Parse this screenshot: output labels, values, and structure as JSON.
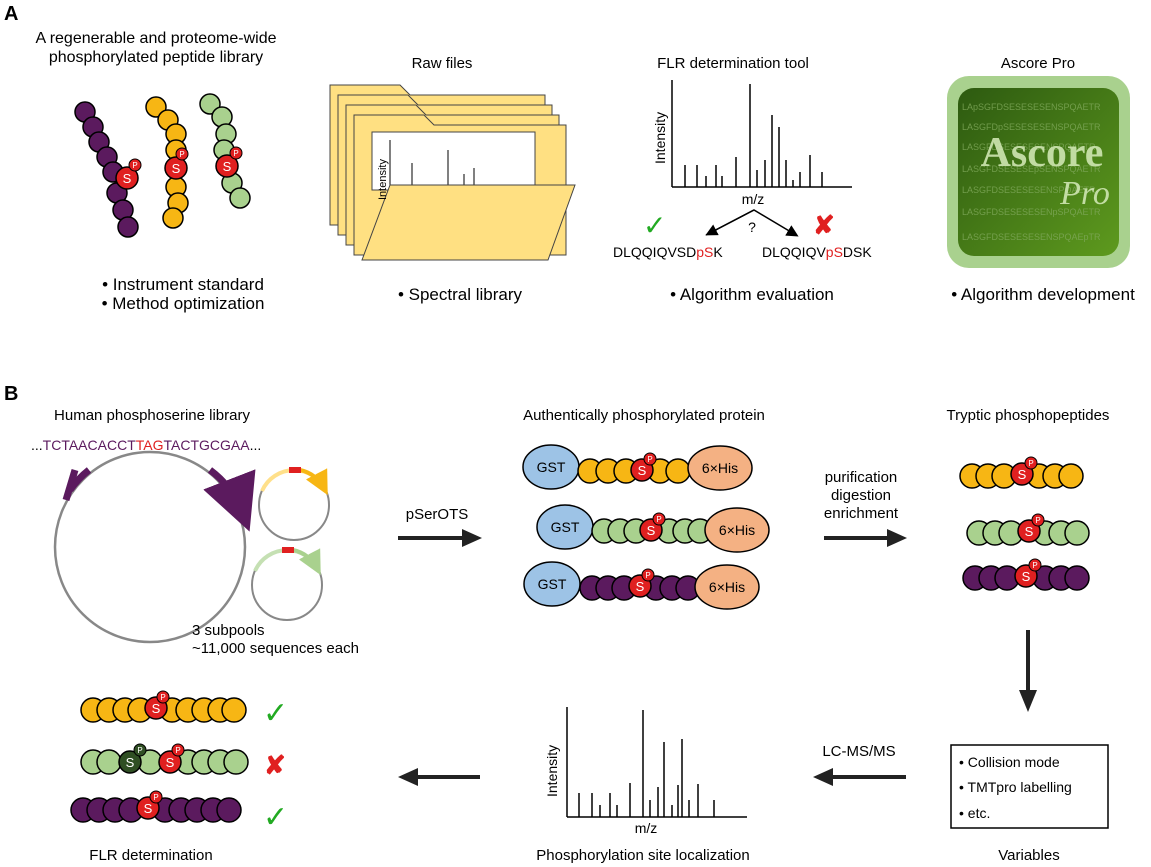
{
  "panel_a": {
    "letter": "A",
    "library": {
      "title_line1": "A regenerable and proteome-wide",
      "title_line2": "phosphorylated peptide library",
      "bullet1": "• Instrument standard",
      "bullet2": "• Method optimization"
    },
    "raw_files": {
      "title": "Raw files",
      "axis_label": "Intensity",
      "bullet": "• Spectral library"
    },
    "flr_tool": {
      "title": "FLR determination tool",
      "ylabel": "Intensity",
      "xlabel": "m/z",
      "question": "?",
      "left_seq_prefix": "DLQQIQVSD",
      "left_seq_red": "pS",
      "left_seq_suffix": "K",
      "right_seq_prefix": "DLQQIQV",
      "right_seq_red": "pS",
      "right_seq_suffix": "DSK",
      "bullet": "• Algorithm evaluation"
    },
    "ascore": {
      "title": "Ascore Pro",
      "logo_word1": "Ascore",
      "logo_word2": "Pro",
      "bg_lines": [
        "LApSGFDSESESESENSPQAETR",
        "LASGFDpSESESESENSPQAETR",
        "LASGFDSESESESENSPQAETR",
        "LASGFDSESESEpSENSPQAETR",
        "LASGFDSESESESENSPQAETR",
        "LASGFDSESESESENpSPQAETR",
        "LASGFDSESESESENSPQAEpTR"
      ],
      "bullet": "• Algorithm development"
    },
    "s_label": "S",
    "p_label": "P"
  },
  "panel_b": {
    "letter": "B",
    "library_title": "Human phosphoserine library",
    "seq_dots1": "...",
    "seq_part1": "TCTAACACCT",
    "seq_red": "TAG",
    "seq_part2": "TACTGCGAA",
    "seq_dots2": "...",
    "subpools_line1": "3 subpools",
    "subpools_line2": "~11,000 sequences each",
    "arrow1_label": "pSerOTS",
    "protein_title": "Authentically phosphorylated protein",
    "gst": "GST",
    "his": "6×His",
    "arrow2_line1": "purification",
    "arrow2_line2": "digestion",
    "arrow2_line3": "enrichment",
    "tryptic_title": "Tryptic phosphopeptides",
    "variables": {
      "items": [
        "• Collision mode",
        "• TMTpro labelling",
        "• etc."
      ],
      "caption": "Variables"
    },
    "arrow3_label": "LC-MS/MS",
    "spectrum": {
      "ylabel": "Intensity",
      "xlabel": "m/z",
      "caption": "Phosphorylation site localization"
    },
    "flr_caption": "FLR determination"
  },
  "colors": {
    "purple": "#5b1a5e",
    "yellow": "#f7b614",
    "green": "#a9d18e",
    "dark_green": "#2f4f23",
    "red": "#e02020",
    "check": "#22aa22",
    "gst_blue": "#9dc3e6",
    "his_orange": "#f4b183",
    "folder": "#ffe082",
    "logo_green": "#3f6e16"
  },
  "icons": [
    "check-icon",
    "cross-icon",
    "folder-icon",
    "plasmid-icon",
    "arrow-icon"
  ]
}
